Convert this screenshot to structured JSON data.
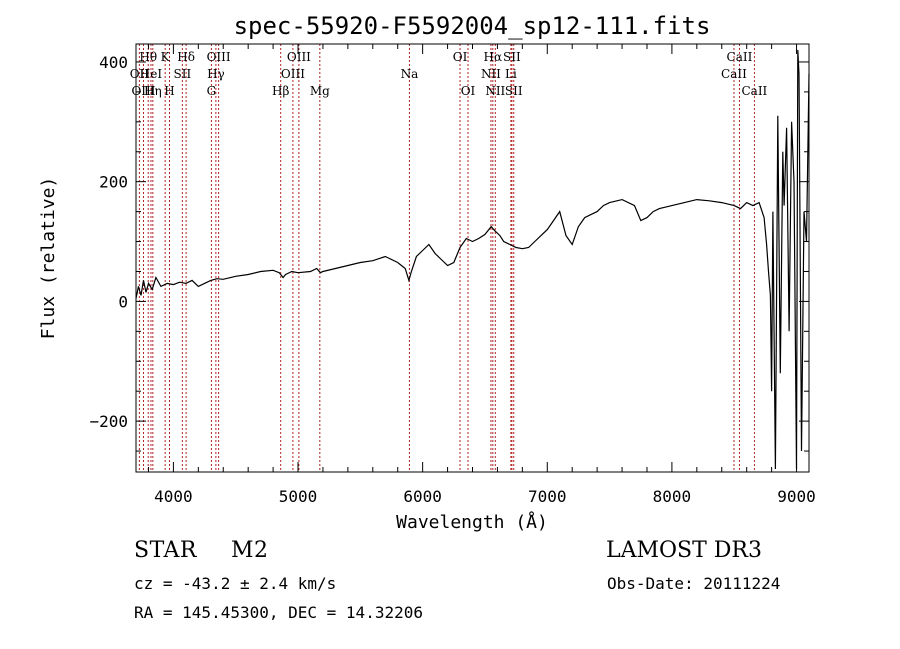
{
  "chart_data": {
    "type": "line",
    "title": "spec-55920-F5592004_sp12-111.fits",
    "xlabel": "Wavelength (Å)",
    "ylabel": "Flux (relative)",
    "xlim": [
      3700,
      9100
    ],
    "ylim": [
      -285,
      430
    ],
    "xticks": [
      4000,
      5000,
      6000,
      7000,
      8000,
      9000
    ],
    "yticks": [
      -200,
      0,
      200,
      400
    ],
    "grid": false,
    "spectrum": {
      "x": [
        3700,
        3720,
        3740,
        3760,
        3780,
        3800,
        3830,
        3860,
        3900,
        3950,
        4000,
        4050,
        4100,
        4150,
        4200,
        4250,
        4300,
        4350,
        4400,
        4500,
        4600,
        4700,
        4800,
        4850,
        4880,
        4900,
        4950,
        5000,
        5100,
        5150,
        5180,
        5200,
        5300,
        5400,
        5500,
        5600,
        5700,
        5800,
        5860,
        5890,
        5910,
        5950,
        6000,
        6050,
        6100,
        6150,
        6200,
        6250,
        6300,
        6350,
        6400,
        6450,
        6500,
        6550,
        6580,
        6620,
        6650,
        6700,
        6750,
        6800,
        6850,
        6900,
        6950,
        7000,
        7050,
        7100,
        7150,
        7200,
        7250,
        7300,
        7350,
        7400,
        7450,
        7500,
        7600,
        7700,
        7750,
        7800,
        7850,
        7900,
        8000,
        8100,
        8200,
        8300,
        8400,
        8500,
        8550,
        8600,
        8650,
        8700,
        8740,
        8760,
        8775,
        8790,
        8800,
        8810,
        8830,
        8850,
        8870,
        8890,
        8900,
        8920,
        8940,
        8960,
        8980,
        9000,
        9010,
        9020,
        9040,
        9060,
        9080,
        9100
      ],
      "y": [
        5,
        25,
        10,
        35,
        15,
        30,
        20,
        40,
        25,
        30,
        28,
        32,
        30,
        35,
        25,
        30,
        35,
        38,
        37,
        42,
        45,
        50,
        52,
        48,
        40,
        45,
        50,
        48,
        50,
        55,
        48,
        50,
        55,
        60,
        65,
        68,
        75,
        65,
        55,
        35,
        50,
        75,
        85,
        95,
        80,
        70,
        60,
        65,
        90,
        105,
        100,
        105,
        112,
        125,
        118,
        110,
        100,
        95,
        90,
        88,
        90,
        100,
        110,
        120,
        135,
        150,
        110,
        95,
        125,
        140,
        145,
        150,
        160,
        165,
        170,
        160,
        135,
        140,
        150,
        155,
        160,
        165,
        170,
        168,
        165,
        160,
        155,
        165,
        160,
        165,
        140,
        95,
        50,
        10,
        -150,
        150,
        -280,
        310,
        -120,
        250,
        160,
        290,
        -50,
        300,
        200,
        -280,
        420,
        380,
        -250,
        150,
        100,
        380
      ]
    },
    "lines": [
      {
        "name": "Hθ",
        "wl": 3798,
        "row": 1
      },
      {
        "name": "OII",
        "wl": 3727,
        "row": 2
      },
      {
        "name": "OIII",
        "wl": 3760,
        "row": 3
      },
      {
        "name": "HeI",
        "wl": 3820,
        "row": 2
      },
      {
        "name": "Hη",
        "wl": 3835,
        "row": 3
      },
      {
        "name": "K",
        "wl": 3934,
        "row": 1
      },
      {
        "name": "H",
        "wl": 3969,
        "row": 3
      },
      {
        "name": "SII",
        "wl": 4072,
        "row": 2
      },
      {
        "name": "Hδ",
        "wl": 4102,
        "row": 1
      },
      {
        "name": "G",
        "wl": 4305,
        "row": 3
      },
      {
        "name": "Hγ",
        "wl": 4341,
        "row": 2
      },
      {
        "name": "OIII",
        "wl": 4363,
        "row": 1
      },
      {
        "name": "Hβ",
        "wl": 4861,
        "row": 3
      },
      {
        "name": "OIII",
        "wl": 4959,
        "row": 2
      },
      {
        "name": "OIII",
        "wl": 5007,
        "row": 1
      },
      {
        "name": "Mg",
        "wl": 5175,
        "row": 3
      },
      {
        "name": "Na",
        "wl": 5894,
        "row": 2
      },
      {
        "name": "OI",
        "wl": 6300,
        "row": 1
      },
      {
        "name": "OI",
        "wl": 6364,
        "row": 3
      },
      {
        "name": "NII",
        "wl": 6548,
        "row": 2
      },
      {
        "name": "Hα",
        "wl": 6563,
        "row": 1
      },
      {
        "name": "NII",
        "wl": 6583,
        "row": 3
      },
      {
        "name": "Li",
        "wl": 6708,
        "row": 2
      },
      {
        "name": "SII",
        "wl": 6716,
        "row": 1
      },
      {
        "name": "SII",
        "wl": 6731,
        "row": 3
      },
      {
        "name": "CaII",
        "wl": 8498,
        "row": 2
      },
      {
        "name": "CaII",
        "wl": 8542,
        "row": 1
      },
      {
        "name": "CaII",
        "wl": 8662,
        "row": 3
      }
    ]
  },
  "footer": {
    "object_class": "STAR",
    "subclass": "M2",
    "survey": "LAMOST DR3",
    "cz": "cz = -43.2 ± 2.4 km/s",
    "obs_date": "Obs-Date: 20111224",
    "radec": "RA = 145.45300, DEC =  14.32206"
  },
  "colors": {
    "line_marker": "#b22222",
    "spectrum": "#000000",
    "axis": "#000000"
  }
}
